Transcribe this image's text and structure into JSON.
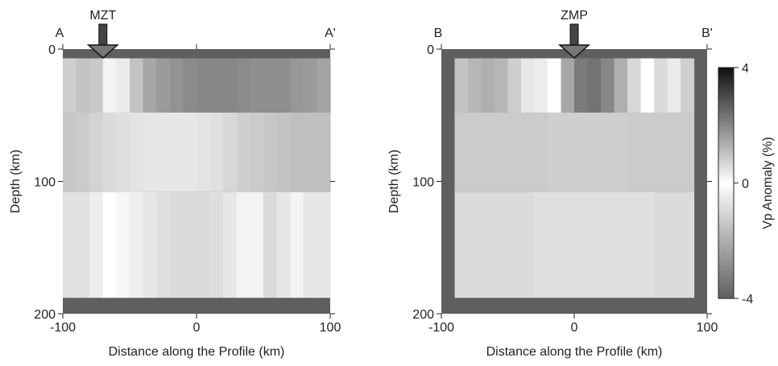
{
  "chart_data": [
    {
      "type": "heatmap",
      "profile_start_label": "A",
      "profile_end_label": "A'",
      "marker": {
        "label": "MZT",
        "x": -70
      },
      "xlabel": "Distance along the Profile (km)",
      "ylabel": "Depth (km)",
      "xlim": [
        -100,
        100
      ],
      "ylim": [
        0,
        200
      ],
      "x_ticks": [
        -100,
        0,
        100
      ],
      "y_ticks": [
        0,
        100,
        200
      ],
      "layers": [
        {
          "depth": [
            7,
            48
          ],
          "x": [
            -95,
            -85,
            -75,
            -65,
            -55,
            -45,
            -35,
            -25,
            -15,
            -5,
            5,
            15,
            25,
            35,
            45,
            55,
            65,
            75,
            85,
            95
          ],
          "values": [
            0.8,
            1.0,
            0.9,
            0.2,
            -0.5,
            -1.5,
            -2.2,
            -2.5,
            -2.7,
            -2.9,
            -3.0,
            -3.0,
            -3.0,
            -2.9,
            -2.8,
            -2.8,
            -2.8,
            -2.6,
            -2.5,
            -2.3
          ]
        },
        {
          "depth": [
            48,
            108
          ],
          "x": [
            -95,
            -85,
            -75,
            -65,
            -55,
            -45,
            -35,
            -25,
            -15,
            -5,
            5,
            15,
            25,
            35,
            45,
            55,
            65,
            75,
            85,
            95
          ],
          "values": [
            -1.4,
            -1.3,
            -1.1,
            -0.9,
            -0.8,
            -0.7,
            -0.6,
            -0.6,
            -0.6,
            -0.6,
            -0.7,
            -0.8,
            -1.0,
            -1.2,
            -1.3,
            -1.4,
            -1.5,
            -1.6,
            -1.6,
            -1.6
          ]
        },
        {
          "depth": [
            108,
            188
          ],
          "x": [
            -95,
            -85,
            -75,
            -65,
            -55,
            -45,
            -35,
            -25,
            -15,
            -5,
            5,
            15,
            25,
            35,
            45,
            55,
            65,
            75,
            85,
            95
          ],
          "values": [
            0.5,
            0.5,
            0.3,
            0.0,
            -0.2,
            -0.4,
            -0.6,
            -0.8,
            -0.9,
            -0.9,
            -0.9,
            -0.8,
            -0.6,
            -0.3,
            0.2,
            0.6,
            0.4,
            -0.3,
            -0.6,
            -0.6
          ]
        }
      ]
    },
    {
      "type": "heatmap",
      "profile_start_label": "B",
      "profile_end_label": "B'",
      "marker": {
        "label": "ZMP",
        "x": 0
      },
      "xlabel": "Distance along the Profile (km)",
      "ylabel": "Depth (km)",
      "xlim": [
        -100,
        100
      ],
      "ylim": [
        0,
        200
      ],
      "x_ticks": [
        -100,
        0,
        100
      ],
      "y_ticks": [
        0,
        100,
        200
      ],
      "layers": [
        {
          "depth": [
            7,
            48
          ],
          "x": [
            -85,
            -75,
            -65,
            -55,
            -45,
            -35,
            -25,
            -15,
            -5,
            5,
            15,
            25,
            35,
            45,
            55,
            65,
            75,
            85
          ],
          "values": [
            -1.5,
            -1.8,
            -2.0,
            -1.8,
            -1.2,
            -0.6,
            0.3,
            0.0,
            -2.2,
            -3.3,
            -3.5,
            -3.0,
            -2.0,
            -1.0,
            0.0,
            0.6,
            -0.5,
            -1.2
          ]
        },
        {
          "depth": [
            48,
            108
          ],
          "x": [
            -85,
            -75,
            -65,
            -55,
            -45,
            -35,
            -25,
            -15,
            -5,
            5,
            15,
            25,
            35,
            45,
            55,
            65,
            75,
            85
          ],
          "values": [
            -1.3,
            -1.3,
            -1.3,
            -1.3,
            -1.3,
            -1.3,
            -1.3,
            -1.2,
            -1.2,
            -1.2,
            -1.2,
            -1.2,
            -1.2,
            -1.3,
            -1.3,
            -1.3,
            -1.3,
            -1.3
          ]
        },
        {
          "depth": [
            108,
            188
          ],
          "x": [
            -85,
            -75,
            -65,
            -55,
            -45,
            -35,
            -25,
            -15,
            -5,
            5,
            15,
            25,
            35,
            45,
            55,
            65,
            75,
            85
          ],
          "values": [
            -0.9,
            -0.9,
            -0.9,
            -0.9,
            -0.9,
            -0.9,
            -0.8,
            -0.8,
            -0.8,
            -0.8,
            -0.8,
            -0.8,
            -0.8,
            -0.8,
            -0.8,
            -0.9,
            -0.9,
            -0.9
          ]
        }
      ]
    }
  ],
  "colorbar": {
    "label": "Vp Anomaly (%)",
    "min": -4,
    "max": 4,
    "ticks": [
      4,
      0,
      -4
    ]
  }
}
